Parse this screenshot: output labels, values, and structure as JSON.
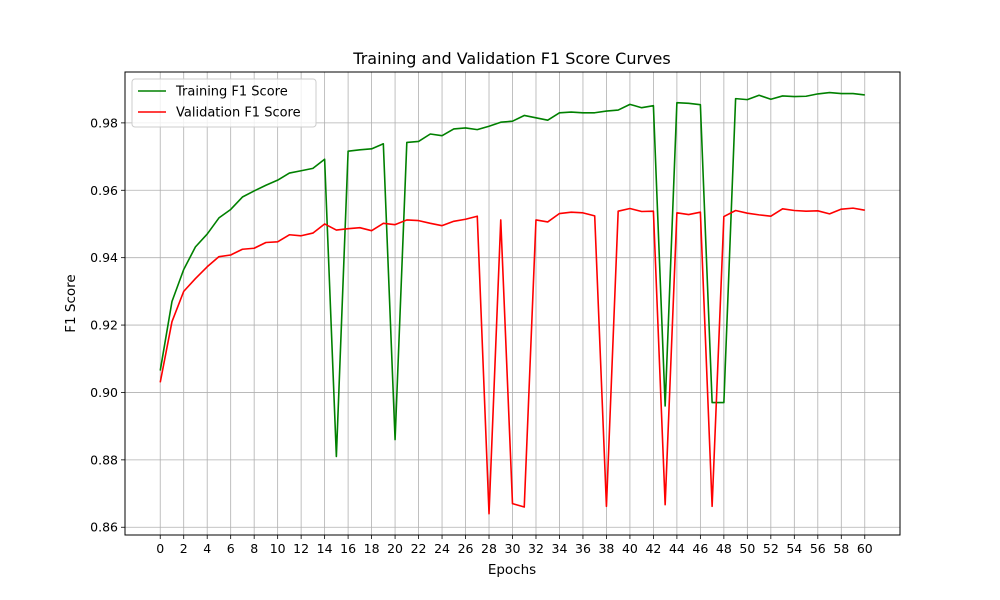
{
  "chart_data": {
    "type": "line",
    "title": "Training and Validation F1 Score Curves",
    "xlabel": "Epochs",
    "ylabel": "F1 Score",
    "xlim": [
      -3,
      63
    ],
    "ylim": [
      0.8577,
      0.9951
    ],
    "grid": true,
    "legend": "upper-left",
    "xticks": [
      0,
      2,
      4,
      6,
      8,
      10,
      12,
      14,
      16,
      18,
      20,
      22,
      24,
      26,
      28,
      30,
      32,
      34,
      36,
      38,
      40,
      42,
      44,
      46,
      48,
      50,
      52,
      54,
      56,
      58,
      60
    ],
    "yticks": [
      0.86,
      0.88,
      0.9,
      0.92,
      0.94,
      0.96,
      0.98
    ],
    "ytick_labels": [
      "0.86",
      "0.88",
      "0.90",
      "0.92",
      "0.94",
      "0.96",
      "0.98"
    ],
    "x": [
      0,
      1,
      2,
      3,
      4,
      5,
      6,
      7,
      8,
      9,
      10,
      11,
      12,
      13,
      14,
      15,
      16,
      17,
      18,
      19,
      20,
      21,
      22,
      23,
      24,
      25,
      26,
      27,
      28,
      29,
      30,
      31,
      32,
      33,
      34,
      35,
      36,
      37,
      38,
      39,
      40,
      41,
      42,
      43,
      44,
      45,
      46,
      47,
      48,
      49,
      50,
      51,
      52,
      53,
      54,
      55,
      56,
      57,
      58,
      59,
      60
    ],
    "series": [
      {
        "name": "Training F1 Score",
        "color": "#008000",
        "values": [
          0.9065,
          0.927,
          0.9365,
          0.9432,
          0.947,
          0.9518,
          0.9543,
          0.958,
          0.9598,
          0.9615,
          0.963,
          0.9651,
          0.9658,
          0.9665,
          0.9692,
          0.881,
          0.9716,
          0.972,
          0.9723,
          0.9738,
          0.886,
          0.9742,
          0.9745,
          0.9767,
          0.9762,
          0.9782,
          0.9785,
          0.978,
          0.979,
          0.9802,
          0.9805,
          0.9822,
          0.9815,
          0.9808,
          0.983,
          0.9832,
          0.983,
          0.983,
          0.9835,
          0.9838,
          0.9855,
          0.9845,
          0.9851,
          0.896,
          0.986,
          0.9858,
          0.9854,
          0.897,
          0.897,
          0.9872,
          0.9869,
          0.9882,
          0.987,
          0.988,
          0.9878,
          0.9879,
          0.9886,
          0.989,
          0.9887,
          0.9887,
          0.9883
        ]
      },
      {
        "name": "Validation F1 Score",
        "color": "#ff0000",
        "values": [
          0.903,
          0.921,
          0.93,
          0.9338,
          0.9373,
          0.9403,
          0.9408,
          0.9425,
          0.9428,
          0.9445,
          0.9447,
          0.9468,
          0.9465,
          0.9473,
          0.95,
          0.9482,
          0.9486,
          0.9489,
          0.948,
          0.9502,
          0.9498,
          0.9512,
          0.951,
          0.9502,
          0.9495,
          0.9508,
          0.9514,
          0.9523,
          0.864,
          0.9512,
          0.867,
          0.866,
          0.9512,
          0.9506,
          0.9531,
          0.9535,
          0.9533,
          0.9524,
          0.8662,
          0.9538,
          0.9546,
          0.9537,
          0.9538,
          0.8667,
          0.9533,
          0.9528,
          0.9535,
          0.8662,
          0.9522,
          0.954,
          0.9532,
          0.9527,
          0.9523,
          0.9545,
          0.954,
          0.9538,
          0.9539,
          0.953,
          0.9544,
          0.9547,
          0.9541
        ]
      }
    ]
  }
}
